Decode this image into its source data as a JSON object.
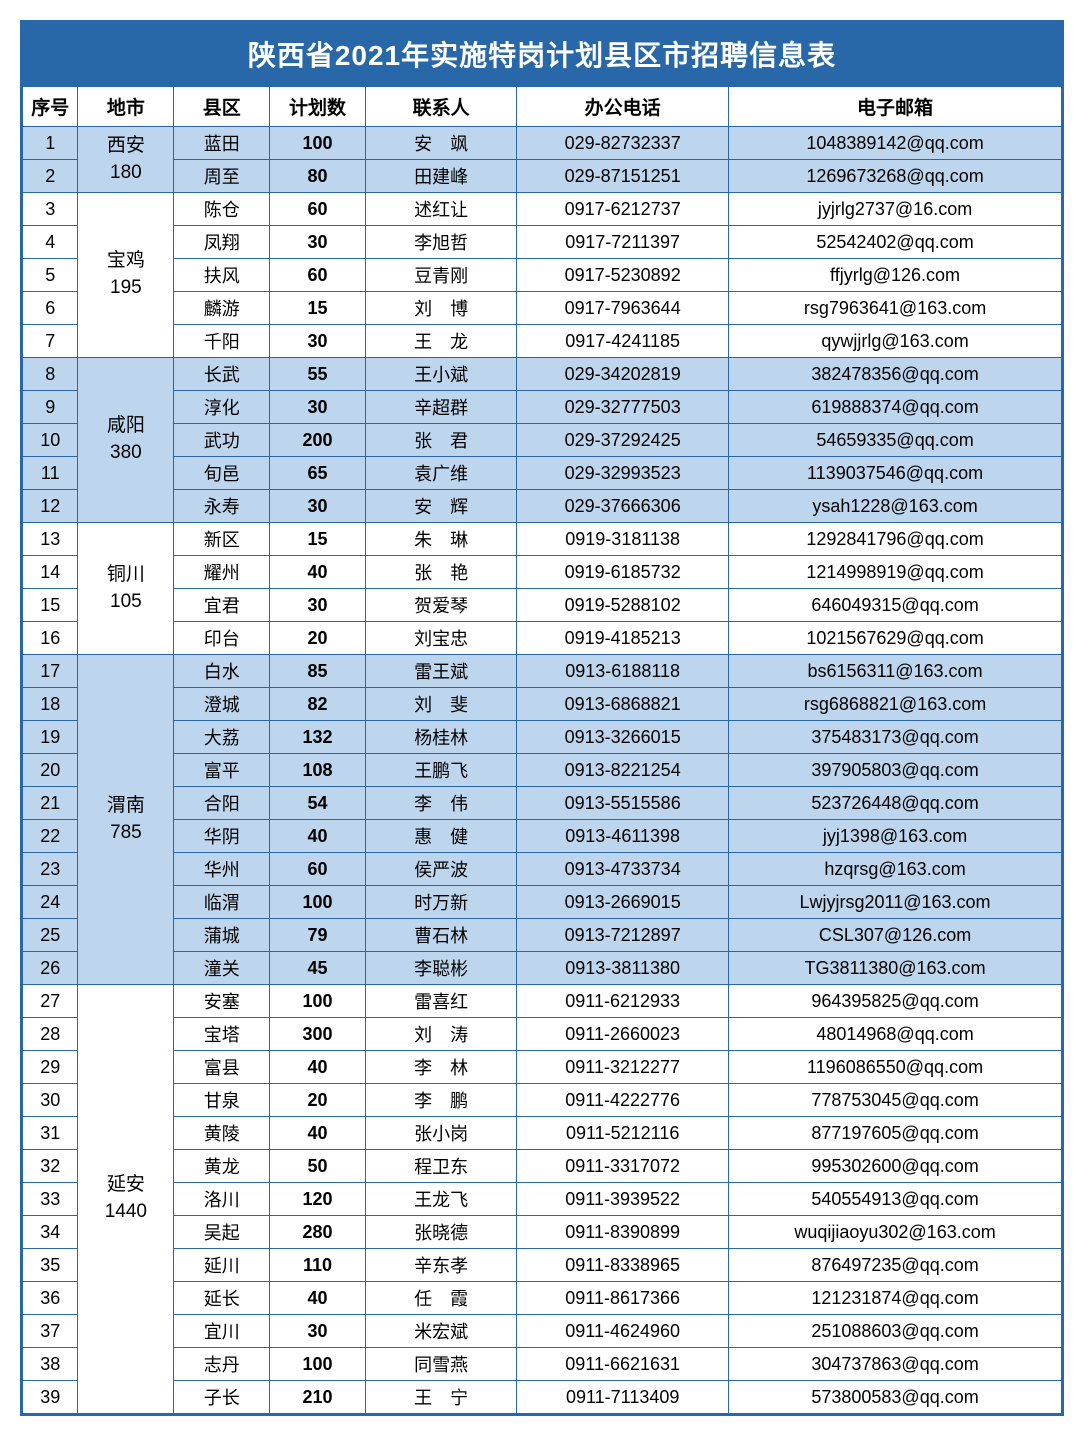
{
  "title": "陕西省2021年实施特岗计划县区市招聘信息表",
  "headers": {
    "seq": "序号",
    "city": "地市",
    "county": "县区",
    "plan": "计划数",
    "contact": "联系人",
    "phone": "办公电话",
    "email": "电子邮箱"
  },
  "colors": {
    "border": "#2968a8",
    "header_bg": "#2968a8",
    "header_fg": "#ffffff",
    "band_blue": "#bdd6ee",
    "band_white": "#ffffff"
  },
  "groups": [
    {
      "city": "西安",
      "total": "180",
      "band": "blue",
      "rows": [
        {
          "seq": "1",
          "county": "蓝田",
          "plan": "100",
          "contact": "安　飒",
          "phone": "029-82732337",
          "email": "1048389142@qq.com"
        },
        {
          "seq": "2",
          "county": "周至",
          "plan": "80",
          "contact": "田建峰",
          "phone": "029-87151251",
          "email": "1269673268@qq.com"
        }
      ]
    },
    {
      "city": "宝鸡",
      "total": "195",
      "band": "white",
      "rows": [
        {
          "seq": "3",
          "county": "陈仓",
          "plan": "60",
          "contact": "述红让",
          "phone": "0917-6212737",
          "email": "jyjrlg2737@16.com"
        },
        {
          "seq": "4",
          "county": "凤翔",
          "plan": "30",
          "contact": "李旭哲",
          "phone": "0917-7211397",
          "email": "52542402@qq.com"
        },
        {
          "seq": "5",
          "county": "扶风",
          "plan": "60",
          "contact": "豆青刚",
          "phone": "0917-5230892",
          "email": "ffjyrlg@126.com"
        },
        {
          "seq": "6",
          "county": "麟游",
          "plan": "15",
          "contact": "刘　博",
          "phone": "0917-7963644",
          "email": "rsg7963641@163.com"
        },
        {
          "seq": "7",
          "county": "千阳",
          "plan": "30",
          "contact": "王　龙",
          "phone": "0917-4241185",
          "email": "qywjjrlg@163.com"
        }
      ]
    },
    {
      "city": "咸阳",
      "total": "380",
      "band": "blue",
      "rows": [
        {
          "seq": "8",
          "county": "长武",
          "plan": "55",
          "contact": "王小斌",
          "phone": "029-34202819",
          "email": "382478356@qq.com"
        },
        {
          "seq": "9",
          "county": "淳化",
          "plan": "30",
          "contact": "辛超群",
          "phone": "029-32777503",
          "email": "619888374@qq.com"
        },
        {
          "seq": "10",
          "county": "武功",
          "plan": "200",
          "contact": "张　君",
          "phone": "029-37292425",
          "email": "54659335@qq.com"
        },
        {
          "seq": "11",
          "county": "旬邑",
          "plan": "65",
          "contact": "袁广维",
          "phone": "029-32993523",
          "email": "1139037546@qq.com"
        },
        {
          "seq": "12",
          "county": "永寿",
          "plan": "30",
          "contact": "安　辉",
          "phone": "029-37666306",
          "email": "ysah1228@163.com"
        }
      ]
    },
    {
      "city": "铜川",
      "total": "105",
      "band": "white",
      "rows": [
        {
          "seq": "13",
          "county": "新区",
          "plan": "15",
          "contact": "朱　琳",
          "phone": "0919-3181138",
          "email": "1292841796@qq.com"
        },
        {
          "seq": "14",
          "county": "耀州",
          "plan": "40",
          "contact": "张　艳",
          "phone": "0919-6185732",
          "email": "1214998919@qq.com"
        },
        {
          "seq": "15",
          "county": "宜君",
          "plan": "30",
          "contact": "贺爱琴",
          "phone": "0919-5288102",
          "email": "646049315@qq.com"
        },
        {
          "seq": "16",
          "county": "印台",
          "plan": "20",
          "contact": "刘宝忠",
          "phone": "0919-4185213",
          "email": "1021567629@qq.com"
        }
      ]
    },
    {
      "city": "渭南",
      "total": "785",
      "band": "blue",
      "rows": [
        {
          "seq": "17",
          "county": "白水",
          "plan": "85",
          "contact": "雷王斌",
          "phone": "0913-6188118",
          "email": "bs6156311@163.com"
        },
        {
          "seq": "18",
          "county": "澄城",
          "plan": "82",
          "contact": "刘　斐",
          "phone": "0913-6868821",
          "email": "rsg6868821@163.com"
        },
        {
          "seq": "19",
          "county": "大荔",
          "plan": "132",
          "contact": "杨桂林",
          "phone": "0913-3266015",
          "email": "375483173@qq.com"
        },
        {
          "seq": "20",
          "county": "富平",
          "plan": "108",
          "contact": "王鹏飞",
          "phone": "0913-8221254",
          "email": "397905803@qq.com"
        },
        {
          "seq": "21",
          "county": "合阳",
          "plan": "54",
          "contact": "李　伟",
          "phone": "0913-5515586",
          "email": "523726448@qq.com"
        },
        {
          "seq": "22",
          "county": "华阴",
          "plan": "40",
          "contact": "惠　健",
          "phone": "0913-4611398",
          "email": "jyj1398@163.com"
        },
        {
          "seq": "23",
          "county": "华州",
          "plan": "60",
          "contact": "侯严波",
          "phone": "0913-4733734",
          "email": "hzqrsg@163.com"
        },
        {
          "seq": "24",
          "county": "临渭",
          "plan": "100",
          "contact": "时万新",
          "phone": "0913-2669015",
          "email": "Lwjyjrsg2011@163.com"
        },
        {
          "seq": "25",
          "county": "蒲城",
          "plan": "79",
          "contact": "曹石林",
          "phone": "0913-7212897",
          "email": "CSL307@126.com"
        },
        {
          "seq": "26",
          "county": "潼关",
          "plan": "45",
          "contact": "李聪彬",
          "phone": "0913-3811380",
          "email": "TG3811380@163.com"
        }
      ]
    },
    {
      "city": "延安",
      "total": "1440",
      "band": "white",
      "rows": [
        {
          "seq": "27",
          "county": "安塞",
          "plan": "100",
          "contact": "雷喜红",
          "phone": "0911-6212933",
          "email": "964395825@qq.com"
        },
        {
          "seq": "28",
          "county": "宝塔",
          "plan": "300",
          "contact": "刘　涛",
          "phone": "0911-2660023",
          "email": "48014968@qq.com"
        },
        {
          "seq": "29",
          "county": "富县",
          "plan": "40",
          "contact": "李　林",
          "phone": "0911-3212277",
          "email": "1196086550@qq.com"
        },
        {
          "seq": "30",
          "county": "甘泉",
          "plan": "20",
          "contact": "李　鹏",
          "phone": "0911-4222776",
          "email": "778753045@qq.com"
        },
        {
          "seq": "31",
          "county": "黄陵",
          "plan": "40",
          "contact": "张小岗",
          "phone": "0911-5212116",
          "email": "877197605@qq.com"
        },
        {
          "seq": "32",
          "county": "黄龙",
          "plan": "50",
          "contact": "程卫东",
          "phone": "0911-3317072",
          "email": "995302600@qq.com"
        },
        {
          "seq": "33",
          "county": "洛川",
          "plan": "120",
          "contact": "王龙飞",
          "phone": "0911-3939522",
          "email": "540554913@qq.com"
        },
        {
          "seq": "34",
          "county": "吴起",
          "plan": "280",
          "contact": "张晓德",
          "phone": "0911-8390899",
          "email": "wuqijiaoyu302@163.com"
        },
        {
          "seq": "35",
          "county": "延川",
          "plan": "110",
          "contact": "辛东孝",
          "phone": "0911-8338965",
          "email": "876497235@qq.com"
        },
        {
          "seq": "36",
          "county": "延长",
          "plan": "40",
          "contact": "任　霞",
          "phone": "0911-8617366",
          "email": "121231874@qq.com"
        },
        {
          "seq": "37",
          "county": "宜川",
          "plan": "30",
          "contact": "米宏斌",
          "phone": "0911-4624960",
          "email": "251088603@qq.com"
        },
        {
          "seq": "38",
          "county": "志丹",
          "plan": "100",
          "contact": "同雪燕",
          "phone": "0911-6621631",
          "email": "304737863@qq.com"
        },
        {
          "seq": "39",
          "county": "子长",
          "plan": "210",
          "contact": "王　宁",
          "phone": "0911-7113409",
          "email": "573800583@qq.com"
        }
      ]
    }
  ]
}
